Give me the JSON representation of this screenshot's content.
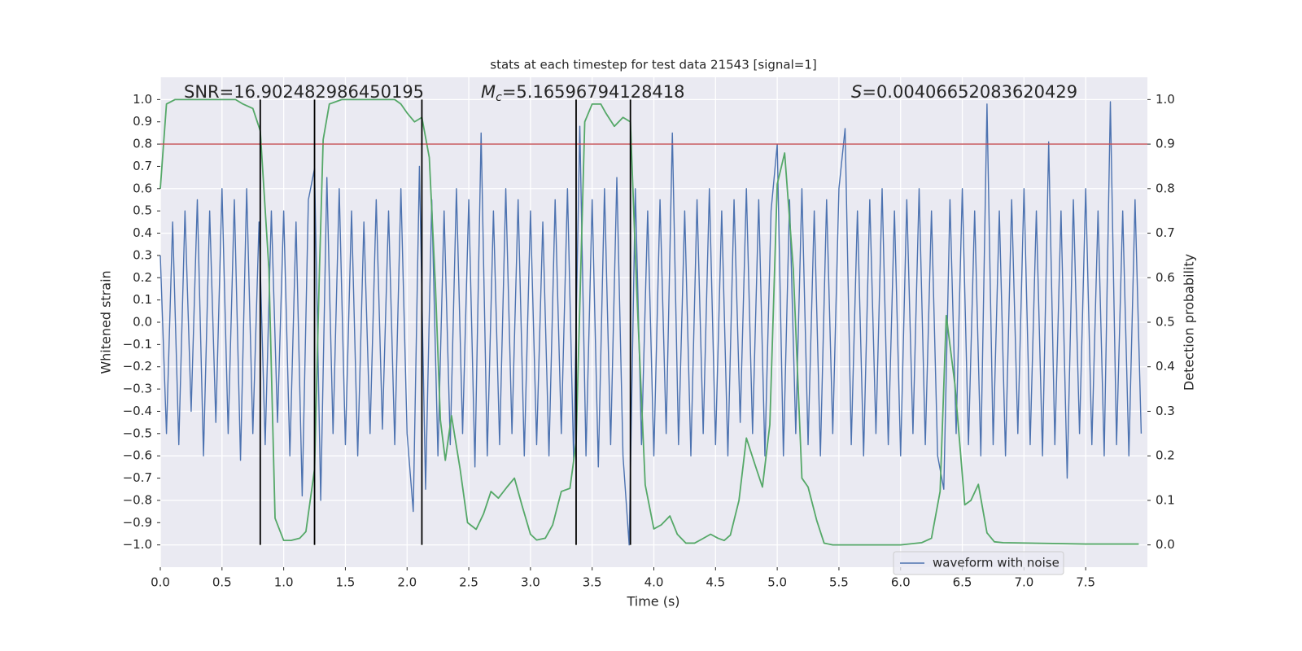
{
  "chart_data": {
    "type": "line",
    "title": "stats at each timestep for test data 21543 [signal=1]",
    "xlabel": "Time (s)",
    "ylabel": "Whitened strain",
    "y2label": "Detection probability",
    "annotations": [
      {
        "text": "SNR=16.902482986450195"
      },
      {
        "italic": "M",
        "sub": "c",
        "text": "=5.16596794128418"
      },
      {
        "italic": "S",
        "text": "=0.00406652083620429"
      }
    ],
    "xlim": [
      0,
      8
    ],
    "ylim": [
      -1.1,
      1.1
    ],
    "y2lim": [
      -0.05,
      1.05
    ],
    "xticks": [
      {
        "value": 0,
        "label": "0.0"
      },
      0.5,
      {
        "value": 1,
        "label": "1.0"
      },
      1.5,
      {
        "value": 2,
        "label": "2.0"
      },
      2.5,
      {
        "value": 3,
        "label": "3.0"
      },
      3.5,
      {
        "value": 4,
        "label": "4.0"
      },
      4.5,
      {
        "value": 5,
        "label": "5.0"
      },
      5.5,
      {
        "value": 6,
        "label": "6.0"
      },
      6.5,
      {
        "value": 7,
        "label": "7.0"
      },
      7.5
    ],
    "yticks": [
      {
        "value": -1,
        "label": "−1.0"
      },
      {
        "value": -0.9,
        "label": "−0.9"
      },
      {
        "value": -0.8,
        "label": "−0.8"
      },
      {
        "value": -0.7,
        "label": "−0.7"
      },
      {
        "value": -0.6,
        "label": "−0.6"
      },
      {
        "value": -0.5,
        "label": "−0.5"
      },
      {
        "value": -0.4,
        "label": "−0.4"
      },
      {
        "value": -0.3,
        "label": "−0.3"
      },
      {
        "value": -0.2,
        "label": "−0.2"
      },
      {
        "value": -0.1,
        "label": "−0.1"
      },
      {
        "value": 0,
        "label": "0.0"
      },
      0.1,
      0.2,
      0.3,
      0.4,
      0.5,
      0.6,
      0.7,
      0.8,
      0.9,
      {
        "value": 1,
        "label": "1.0"
      }
    ],
    "y2ticks": [
      {
        "value": 0,
        "label": "0.0"
      },
      0.1,
      0.2,
      0.3,
      0.4,
      0.5,
      0.6,
      0.7,
      0.8,
      0.9,
      {
        "value": 1,
        "label": "1.0"
      }
    ],
    "grid": true,
    "legend": "best",
    "vlines": {
      "color": "#000000",
      "x": [
        0.81,
        1.25,
        2.12,
        3.37,
        3.81
      ],
      "ymin": -1,
      "ymax": 1
    },
    "hline": {
      "color": "#c44e52",
      "y": 0.8
    },
    "series": [
      {
        "name": "waveform with noise",
        "color": "#4c72b0",
        "x": [
          0,
          0.05,
          0.1,
          0.15,
          0.2,
          0.25,
          0.3,
          0.35,
          0.4,
          0.45,
          0.5,
          0.55,
          0.6,
          0.65,
          0.7,
          0.75,
          0.8,
          0.85,
          0.9,
          0.95,
          1,
          1.05,
          1.1,
          1.15,
          1.2,
          1.25,
          1.3,
          1.35,
          1.4,
          1.45,
          1.5,
          1.55,
          1.6,
          1.65,
          1.7,
          1.75,
          1.8,
          1.85,
          1.9,
          1.95,
          2,
          2.05,
          2.1,
          2.15,
          2.2,
          2.25,
          2.3,
          2.35,
          2.4,
          2.45,
          2.5,
          2.55,
          2.6,
          2.65,
          2.7,
          2.75,
          2.8,
          2.85,
          2.9,
          2.95,
          3,
          3.05,
          3.1,
          3.15,
          3.2,
          3.25,
          3.3,
          3.35,
          3.4,
          3.45,
          3.5,
          3.55,
          3.6,
          3.65,
          3.7,
          3.75,
          3.8,
          3.85,
          3.9,
          3.95,
          4,
          4.05,
          4.1,
          4.15,
          4.2,
          4.25,
          4.3,
          4.35,
          4.4,
          4.45,
          4.5,
          4.55,
          4.6,
          4.65,
          4.7,
          4.75,
          4.8,
          4.85,
          4.9,
          4.95,
          5,
          5.05,
          5.1,
          5.15,
          5.2,
          5.25,
          5.3,
          5.35,
          5.4,
          5.45,
          5.5,
          5.55,
          5.6,
          5.65,
          5.7,
          5.75,
          5.8,
          5.85,
          5.9,
          5.95,
          6,
          6.05,
          6.1,
          6.15,
          6.2,
          6.25,
          6.3,
          6.35,
          6.4,
          6.45,
          6.5,
          6.55,
          6.6,
          6.65,
          6.7,
          6.75,
          6.8,
          6.85,
          6.9,
          6.95,
          7,
          7.05,
          7.1,
          7.15,
          7.2,
          7.25,
          7.3,
          7.35,
          7.4,
          7.45,
          7.5,
          7.55,
          7.6,
          7.65,
          7.7,
          7.75,
          7.8,
          7.85,
          7.9,
          7.95
        ],
        "values": [
          0.3,
          -0.5,
          0.45,
          -0.55,
          0.5,
          -0.4,
          0.55,
          -0.6,
          0.5,
          -0.45,
          0.6,
          -0.5,
          0.55,
          -0.62,
          0.6,
          -0.5,
          0.45,
          -0.55,
          0.5,
          -0.45,
          0.5,
          -0.6,
          0.45,
          -0.78,
          0.55,
          0.69,
          -0.8,
          0.65,
          -0.5,
          0.6,
          -0.55,
          0.5,
          -0.6,
          0.45,
          -0.5,
          0.55,
          -0.48,
          0.5,
          -0.55,
          0.6,
          -0.5,
          -0.85,
          0.7,
          -0.75,
          0.55,
          -0.6,
          0.5,
          -0.55,
          0.6,
          -0.5,
          0.55,
          -0.65,
          0.85,
          -0.6,
          0.5,
          -0.55,
          0.6,
          -0.5,
          0.55,
          -0.6,
          0.5,
          -0.55,
          0.45,
          -0.6,
          0.55,
          -0.5,
          0.6,
          -0.62,
          0.88,
          -0.6,
          0.55,
          -0.65,
          0.6,
          -0.55,
          0.65,
          -0.6,
          -1.0,
          0.6,
          -0.55,
          0.5,
          -0.6,
          0.55,
          -0.5,
          0.85,
          -0.55,
          0.5,
          -0.6,
          0.55,
          -0.5,
          0.6,
          -0.55,
          0.5,
          -0.6,
          0.55,
          -0.45,
          0.6,
          -0.5,
          0.55,
          -0.6,
          0.5,
          0.8,
          -0.6,
          0.55,
          -0.5,
          0.6,
          -0.55,
          0.5,
          -0.6,
          0.55,
          -0.5,
          0.6,
          0.87,
          -0.55,
          0.5,
          -0.6,
          0.55,
          -0.5,
          0.6,
          -0.55,
          0.5,
          -0.6,
          0.55,
          -0.5,
          0.6,
          -0.55,
          0.5,
          -0.6,
          -0.75,
          0.55,
          -0.5,
          0.6,
          -0.55,
          0.5,
          -0.6,
          0.98,
          -0.55,
          0.5,
          -0.6,
          0.55,
          -0.5,
          0.6,
          -0.55,
          0.5,
          -0.6,
          0.81,
          -0.55,
          0.5,
          -0.7,
          0.55,
          -0.5,
          0.6,
          -0.55,
          0.5,
          -0.6,
          0.99,
          -0.55,
          0.5,
          -0.6,
          0.55,
          -0.5
        ]
      },
      {
        "color": "#55a868",
        "axis": "y2",
        "x": [
          0,
          0.05,
          0.12,
          0.61,
          0.67,
          0.75,
          0.81,
          0.88,
          0.93,
          1,
          1.06,
          1.13,
          1.18,
          1.25,
          1.29,
          1.32,
          1.37,
          1.47,
          1.9,
          1.95,
          2,
          2.06,
          2.12,
          2.18,
          2.23,
          2.27,
          2.31,
          2.36,
          2.43,
          2.49,
          2.56,
          2.62,
          2.68,
          2.74,
          2.81,
          2.87,
          2.93,
          3,
          3.05,
          3.12,
          3.18,
          3.25,
          3.32,
          3.37,
          3.44,
          3.5,
          3.57,
          3.61,
          3.68,
          3.75,
          3.81,
          3.86,
          3.93,
          4,
          4.06,
          4.13,
          4.19,
          4.26,
          4.33,
          4.39,
          4.46,
          4.52,
          4.57,
          4.62,
          4.69,
          4.75,
          4.82,
          4.88,
          4.94,
          5,
          5.06,
          5.13,
          5.2,
          5.25,
          5.32,
          5.38,
          5.45,
          6,
          6.17,
          6.25,
          6.32,
          6.37,
          6.44,
          6.52,
          6.57,
          6.63,
          6.7,
          6.76,
          6.83,
          7.5,
          7.93
        ],
        "values": [
          0.8,
          0.99,
          1,
          1,
          0.99,
          0.98,
          0.93,
          0.62,
          0.06,
          0.01,
          0.01,
          0.015,
          0.03,
          0.17,
          0.62,
          0.91,
          0.99,
          1,
          1,
          0.99,
          0.97,
          0.95,
          0.96,
          0.87,
          0.58,
          0.28,
          0.19,
          0.29,
          0.17,
          0.05,
          0.035,
          0.07,
          0.12,
          0.105,
          0.13,
          0.15,
          0.09,
          0.024,
          0.011,
          0.015,
          0.045,
          0.12,
          0.127,
          0.23,
          0.95,
          0.99,
          0.99,
          0.97,
          0.94,
          0.96,
          0.95,
          0.58,
          0.135,
          0.036,
          0.045,
          0.065,
          0.024,
          0.004,
          0.004,
          0.013,
          0.024,
          0.015,
          0.01,
          0.022,
          0.1,
          0.24,
          0.18,
          0.13,
          0.27,
          0.81,
          0.88,
          0.62,
          0.15,
          0.13,
          0.055,
          0.004,
          0,
          0,
          0.005,
          0.015,
          0.12,
          0.515,
          0.36,
          0.09,
          0.1,
          0.136,
          0.027,
          0.007,
          0.005,
          0.002,
          0.002
        ]
      }
    ]
  }
}
